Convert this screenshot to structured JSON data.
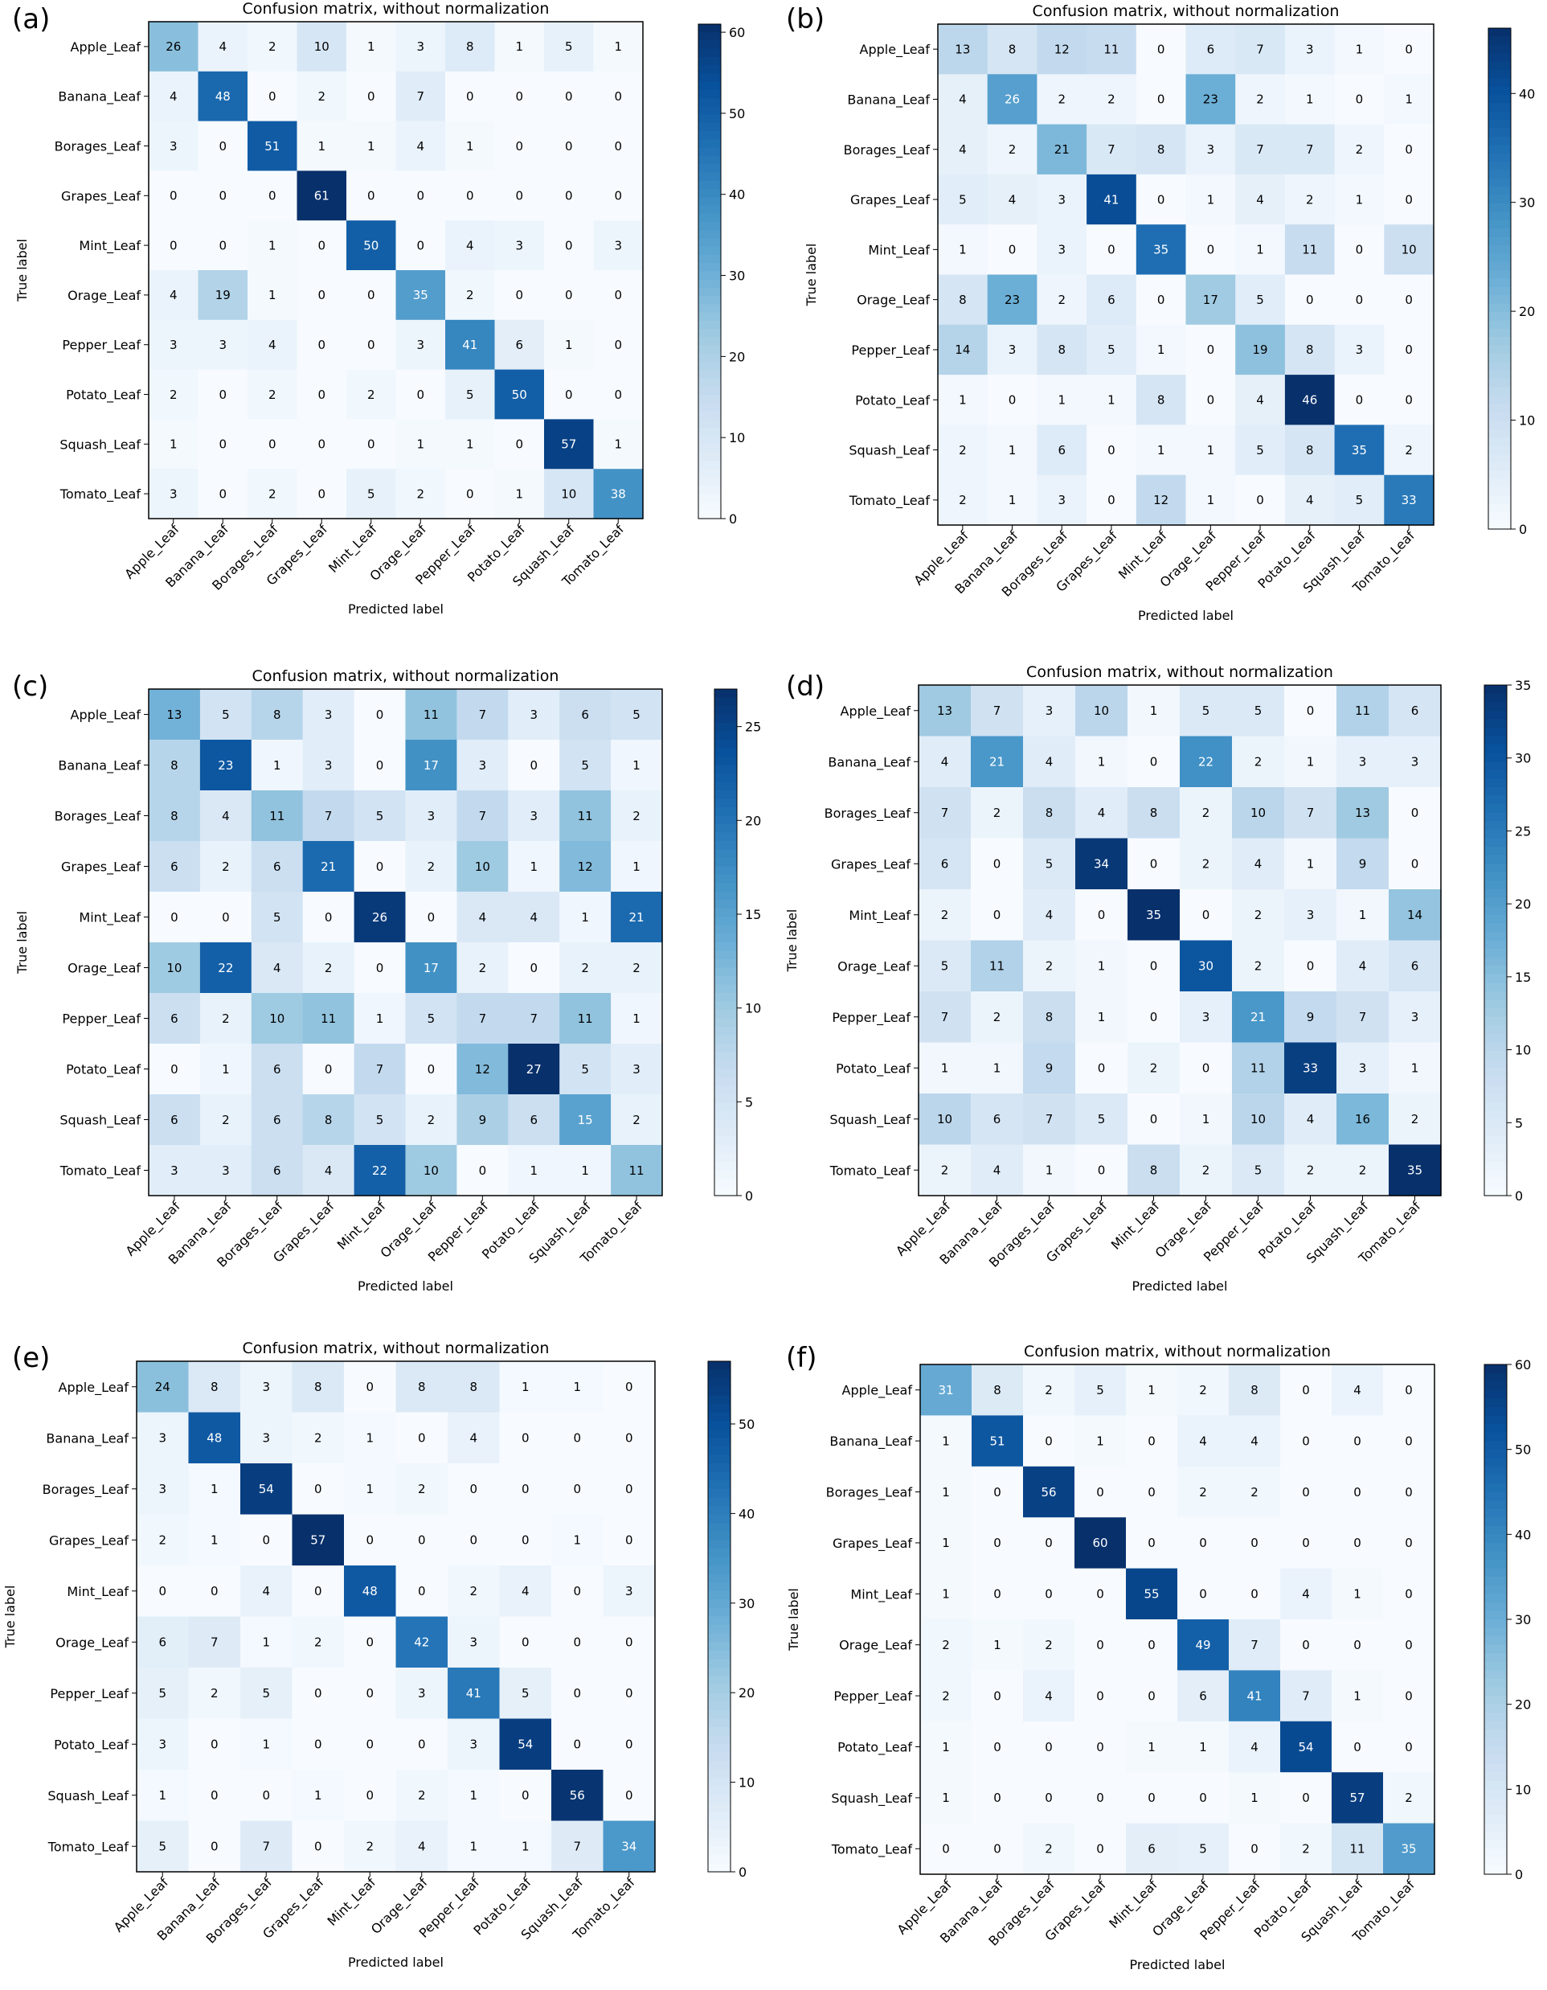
{
  "chart_data": [
    {
      "type": "heatmap",
      "panel_label": "(a)",
      "title": "Confusion matrix, without normalization",
      "xlabel": "Predicted label",
      "ylabel": "True label",
      "colorbar_ticks": [
        0,
        10,
        20,
        30,
        40,
        50,
        60
      ],
      "vmax": 61,
      "values": [
        [
          26,
          4,
          2,
          10,
          1,
          3,
          8,
          1,
          5,
          1
        ],
        [
          4,
          48,
          0,
          2,
          0,
          7,
          0,
          0,
          0,
          0
        ],
        [
          3,
          0,
          51,
          1,
          1,
          4,
          1,
          0,
          0,
          0
        ],
        [
          0,
          0,
          0,
          61,
          0,
          0,
          0,
          0,
          0,
          0
        ],
        [
          0,
          0,
          1,
          0,
          50,
          0,
          4,
          3,
          0,
          3
        ],
        [
          4,
          19,
          1,
          0,
          0,
          35,
          2,
          0,
          0,
          0
        ],
        [
          3,
          3,
          4,
          0,
          0,
          3,
          41,
          6,
          1,
          0
        ],
        [
          2,
          0,
          2,
          0,
          2,
          0,
          5,
          50,
          0,
          0
        ],
        [
          1,
          0,
          0,
          0,
          0,
          1,
          1,
          0,
          57,
          1
        ],
        [
          3,
          0,
          2,
          0,
          5,
          2,
          0,
          1,
          10,
          38
        ]
      ]
    },
    {
      "type": "heatmap",
      "panel_label": "(b)",
      "title": "Confusion matrix, without normalization",
      "xlabel": "Predicted label",
      "ylabel": "True label",
      "colorbar_ticks": [
        0,
        10,
        20,
        30,
        40
      ],
      "vmax": 46,
      "values": [
        [
          13,
          8,
          12,
          11,
          0,
          6,
          7,
          3,
          1,
          0
        ],
        [
          4,
          26,
          2,
          2,
          0,
          23,
          2,
          1,
          0,
          1
        ],
        [
          4,
          2,
          21,
          7,
          8,
          3,
          7,
          7,
          2,
          0
        ],
        [
          5,
          4,
          3,
          41,
          0,
          1,
          4,
          2,
          1,
          0
        ],
        [
          1,
          0,
          3,
          0,
          35,
          0,
          1,
          11,
          0,
          10
        ],
        [
          8,
          23,
          2,
          6,
          0,
          17,
          5,
          0,
          0,
          0
        ],
        [
          14,
          3,
          8,
          5,
          1,
          0,
          19,
          8,
          3,
          0
        ],
        [
          1,
          0,
          1,
          1,
          8,
          0,
          4,
          46,
          0,
          0
        ],
        [
          2,
          1,
          6,
          0,
          1,
          1,
          5,
          8,
          35,
          2
        ],
        [
          2,
          1,
          3,
          0,
          12,
          1,
          0,
          4,
          5,
          33
        ]
      ]
    },
    {
      "type": "heatmap",
      "panel_label": "(c)",
      "title": "Confusion matrix, without normalization",
      "xlabel": "Predicted label",
      "ylabel": "True label",
      "colorbar_ticks": [
        0,
        5,
        10,
        15,
        20,
        25
      ],
      "vmax": 27,
      "values": [
        [
          13,
          5,
          8,
          3,
          0,
          11,
          7,
          3,
          6,
          5
        ],
        [
          8,
          23,
          1,
          3,
          0,
          17,
          3,
          0,
          5,
          1
        ],
        [
          8,
          4,
          11,
          7,
          5,
          3,
          7,
          3,
          11,
          2
        ],
        [
          6,
          2,
          6,
          21,
          0,
          2,
          10,
          1,
          12,
          1
        ],
        [
          0,
          0,
          5,
          0,
          26,
          0,
          4,
          4,
          1,
          21
        ],
        [
          10,
          22,
          4,
          2,
          0,
          17,
          2,
          0,
          2,
          2
        ],
        [
          6,
          2,
          10,
          11,
          1,
          5,
          7,
          7,
          11,
          1
        ],
        [
          0,
          1,
          6,
          0,
          7,
          0,
          12,
          27,
          5,
          3
        ],
        [
          6,
          2,
          6,
          8,
          5,
          2,
          9,
          6,
          15,
          2
        ],
        [
          3,
          3,
          6,
          4,
          22,
          10,
          0,
          1,
          1,
          11
        ]
      ]
    },
    {
      "type": "heatmap",
      "panel_label": "(d)",
      "title": "Confusion matrix, without normalization",
      "xlabel": "Predicted label",
      "ylabel": "True label",
      "colorbar_ticks": [
        0,
        5,
        10,
        15,
        20,
        25,
        30,
        35
      ],
      "vmax": 35,
      "values": [
        [
          13,
          7,
          3,
          10,
          1,
          5,
          5,
          0,
          11,
          6
        ],
        [
          4,
          21,
          4,
          1,
          0,
          22,
          2,
          1,
          3,
          3
        ],
        [
          7,
          2,
          8,
          4,
          8,
          2,
          10,
          7,
          13,
          0
        ],
        [
          6,
          0,
          5,
          34,
          0,
          2,
          4,
          1,
          9,
          0
        ],
        [
          2,
          0,
          4,
          0,
          35,
          0,
          2,
          3,
          1,
          14
        ],
        [
          5,
          11,
          2,
          1,
          0,
          30,
          2,
          0,
          4,
          6
        ],
        [
          7,
          2,
          8,
          1,
          0,
          3,
          21,
          9,
          7,
          3
        ],
        [
          1,
          1,
          9,
          0,
          2,
          0,
          11,
          33,
          3,
          1
        ],
        [
          10,
          6,
          7,
          5,
          0,
          1,
          10,
          4,
          16,
          2
        ],
        [
          2,
          4,
          1,
          0,
          8,
          2,
          5,
          2,
          2,
          35
        ]
      ]
    },
    {
      "type": "heatmap",
      "panel_label": "(e)",
      "title": "Confusion matrix, without normalization",
      "xlabel": "Predicted label",
      "ylabel": "True label",
      "colorbar_ticks": [
        0,
        10,
        20,
        30,
        40,
        50
      ],
      "vmax": 57,
      "values": [
        [
          24,
          8,
          3,
          8,
          0,
          8,
          8,
          1,
          1,
          0
        ],
        [
          3,
          48,
          3,
          2,
          1,
          0,
          4,
          0,
          0,
          0
        ],
        [
          3,
          1,
          54,
          0,
          1,
          2,
          0,
          0,
          0,
          0
        ],
        [
          2,
          1,
          0,
          57,
          0,
          0,
          0,
          0,
          1,
          0
        ],
        [
          0,
          0,
          4,
          0,
          48,
          0,
          2,
          4,
          0,
          3
        ],
        [
          6,
          7,
          1,
          2,
          0,
          42,
          3,
          0,
          0,
          0
        ],
        [
          5,
          2,
          5,
          0,
          0,
          3,
          41,
          5,
          0,
          0
        ],
        [
          3,
          0,
          1,
          0,
          0,
          0,
          3,
          54,
          0,
          0
        ],
        [
          1,
          0,
          0,
          1,
          0,
          2,
          1,
          0,
          56,
          0
        ],
        [
          5,
          0,
          7,
          0,
          2,
          4,
          1,
          1,
          7,
          34
        ]
      ]
    },
    {
      "type": "heatmap",
      "panel_label": "(f)",
      "title": "Confusion matrix, without normalization",
      "xlabel": "Predicted label",
      "ylabel": "True label",
      "colorbar_ticks": [
        0,
        10,
        20,
        30,
        40,
        50,
        60
      ],
      "vmax": 60,
      "values": [
        [
          31,
          8,
          2,
          5,
          1,
          2,
          8,
          0,
          4,
          0
        ],
        [
          1,
          51,
          0,
          1,
          0,
          4,
          4,
          0,
          0,
          0
        ],
        [
          1,
          0,
          56,
          0,
          0,
          2,
          2,
          0,
          0,
          0
        ],
        [
          1,
          0,
          0,
          60,
          0,
          0,
          0,
          0,
          0,
          0
        ],
        [
          1,
          0,
          0,
          0,
          55,
          0,
          0,
          4,
          1,
          0
        ],
        [
          2,
          1,
          2,
          0,
          0,
          49,
          7,
          0,
          0,
          0
        ],
        [
          2,
          0,
          4,
          0,
          0,
          6,
          41,
          7,
          1,
          0
        ],
        [
          1,
          0,
          0,
          0,
          1,
          1,
          4,
          54,
          0,
          0
        ],
        [
          1,
          0,
          0,
          0,
          0,
          0,
          1,
          0,
          57,
          2
        ],
        [
          0,
          0,
          2,
          0,
          6,
          5,
          0,
          2,
          11,
          35
        ]
      ]
    }
  ],
  "class_labels": [
    "Apple_Leaf",
    "Banana_Leaf",
    "Borages_Leaf",
    "Grapes_Leaf",
    "Mint_Leaf",
    "Orage_Leaf",
    "Pepper_Leaf",
    "Potato_Leaf",
    "Squash_Leaf",
    "Tomato_Leaf"
  ],
  "colormap": [
    "#f7fbff",
    "#deebf7",
    "#c6dbef",
    "#9ecae1",
    "#6baed6",
    "#4292c6",
    "#2171b5",
    "#08519c",
    "#08306b"
  ]
}
